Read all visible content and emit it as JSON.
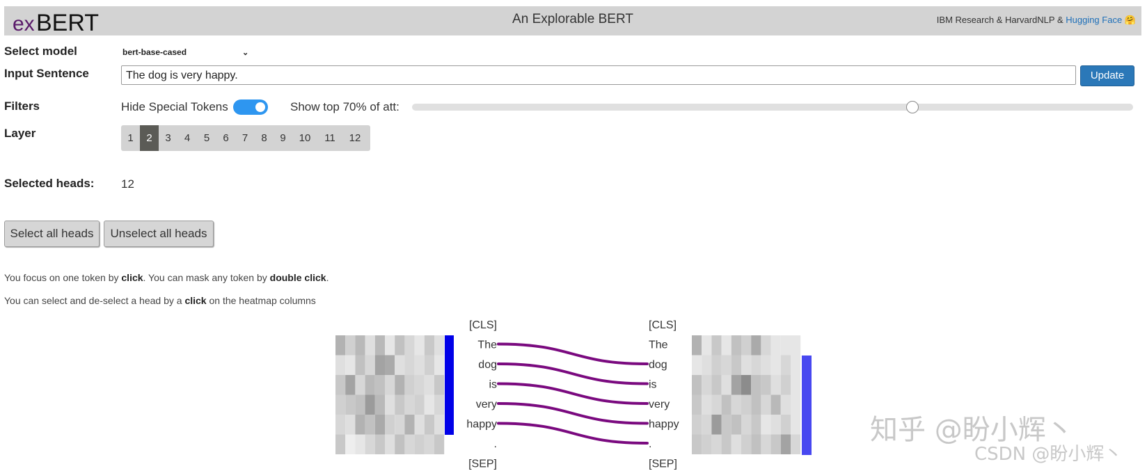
{
  "header": {
    "logo_text": "exBERT",
    "title": "An Explorable BERT",
    "credits_prefix": "IBM Research & HarvardNLP & ",
    "credits_link": "Hugging Face",
    "credits_emoji": "🤗"
  },
  "model": {
    "label": "Select model",
    "value": "bert-base-cased"
  },
  "input": {
    "label": "Input Sentence",
    "value": "The dog is very happy.",
    "button": "Update"
  },
  "filters": {
    "label": "Filters",
    "hide_special_label": "Hide Special Tokens",
    "hide_special_on": true,
    "top_att_label": "Show top 70% of att:",
    "top_att_fraction": 0.7
  },
  "layer": {
    "label": "Layer",
    "options": [
      "1",
      "2",
      "3",
      "4",
      "5",
      "6",
      "7",
      "8",
      "9",
      "10",
      "11",
      "12"
    ],
    "selected": "2"
  },
  "heads": {
    "label": "Selected heads:",
    "value": "12"
  },
  "buttons": {
    "select_all": "Select all heads",
    "unselect_all": "Unselect all heads"
  },
  "help": {
    "line1_a": "You focus on one token by ",
    "line1_b": "click",
    "line1_c": ". You can mask any token by ",
    "line1_d": "double click",
    "line1_e": ".",
    "line2_a": "You can select and de-select a head by a ",
    "line2_b": "click",
    "line2_c": " on the heatmap columns"
  },
  "attention": {
    "left_tokens": [
      "[CLS]",
      "The",
      "dog",
      "is",
      "very",
      "happy",
      ".",
      "[SEP]"
    ],
    "right_tokens": [
      "[CLS]",
      "The",
      "dog",
      "is",
      "very",
      "happy",
      ".",
      "[SEP]"
    ],
    "links": [
      [
        1,
        2
      ],
      [
        2,
        3
      ],
      [
        3,
        4
      ],
      [
        4,
        5
      ],
      [
        5,
        6
      ]
    ],
    "link_color": "#7a0a7f",
    "left_bar_color": "#0000e8",
    "right_bar_color": "#4848f0",
    "left_heatmap": [
      [
        0.45,
        0.25,
        0.4,
        0.15,
        0.4,
        0.1,
        0.35,
        0.2,
        0.1,
        0.3,
        0.15
      ],
      [
        0.15,
        0.1,
        0.35,
        0.2,
        0.55,
        0.5,
        0.15,
        0.2,
        0.15,
        0.25,
        0.1
      ],
      [
        0.3,
        0.55,
        0.2,
        0.4,
        0.35,
        0.2,
        0.45,
        0.25,
        0.2,
        0.15,
        0.3
      ],
      [
        0.25,
        0.3,
        0.35,
        0.6,
        0.4,
        0.15,
        0.3,
        0.2,
        0.25,
        0.1,
        0.2
      ],
      [
        0.2,
        0.15,
        0.45,
        0.35,
        0.5,
        0.25,
        0.2,
        0.45,
        0.15,
        0.3,
        0.15
      ],
      [
        0.3,
        0.05,
        0.1,
        0.2,
        0.3,
        0.15,
        0.35,
        0.2,
        0.25,
        0.2,
        0.3
      ]
    ],
    "right_heatmap": [
      [
        0.45,
        0.1,
        0.3,
        0.1,
        0.35,
        0.25,
        0.5,
        0.2,
        0.1,
        0.1,
        0.1
      ],
      [
        0.1,
        0.15,
        0.25,
        0.2,
        0.3,
        0.15,
        0.2,
        0.15,
        0.1,
        0.2,
        0.1
      ],
      [
        0.35,
        0.2,
        0.3,
        0.15,
        0.55,
        0.7,
        0.35,
        0.3,
        0.15,
        0.25,
        0.1
      ],
      [
        0.3,
        0.15,
        0.2,
        0.35,
        0.2,
        0.25,
        0.35,
        0.2,
        0.4,
        0.15,
        0.1
      ],
      [
        0.25,
        0.2,
        0.6,
        0.3,
        0.35,
        0.2,
        0.3,
        0.1,
        0.15,
        0.25,
        0.1
      ],
      [
        0.3,
        0.25,
        0.2,
        0.3,
        0.15,
        0.25,
        0.35,
        0.2,
        0.3,
        0.55,
        0.2
      ]
    ]
  },
  "watermark": {
    "main": "知乎 @盼小辉丶",
    "sub": "CSDN @盼小辉丶"
  }
}
